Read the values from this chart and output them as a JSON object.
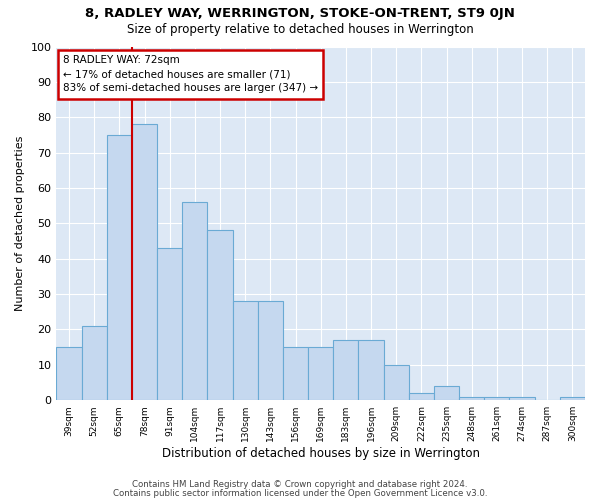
{
  "title1": "8, RADLEY WAY, WERRINGTON, STOKE-ON-TRENT, ST9 0JN",
  "title2": "Size of property relative to detached houses in Werrington",
  "xlabel": "Distribution of detached houses by size in Werrington",
  "ylabel": "Number of detached properties",
  "categories": [
    "39sqm",
    "52sqm",
    "65sqm",
    "78sqm",
    "91sqm",
    "104sqm",
    "117sqm",
    "130sqm",
    "143sqm",
    "156sqm",
    "169sqm",
    "183sqm",
    "196sqm",
    "209sqm",
    "222sqm",
    "235sqm",
    "248sqm",
    "261sqm",
    "274sqm",
    "287sqm",
    "300sqm"
  ],
  "bar_values": [
    15,
    21,
    75,
    78,
    43,
    56,
    48,
    28,
    28,
    15,
    15,
    17,
    17,
    10,
    2,
    4,
    1,
    1,
    1,
    0,
    1
  ],
  "bar_color": "#c5d8ef",
  "bar_edge_color": "#6aaad4",
  "background_color": "#dde8f5",
  "red_line_x": 3.0,
  "annotation_text": "8 RADLEY WAY: 72sqm\n← 17% of detached houses are smaller (71)\n83% of semi-detached houses are larger (347) →",
  "annotation_box_color": "#ffffff",
  "annotation_box_edge": "#cc0000",
  "ylim": [
    0,
    100
  ],
  "yticks": [
    0,
    10,
    20,
    30,
    40,
    50,
    60,
    70,
    80,
    90,
    100
  ],
  "footer1": "Contains HM Land Registry data © Crown copyright and database right 2024.",
  "footer2": "Contains public sector information licensed under the Open Government Licence v3.0."
}
